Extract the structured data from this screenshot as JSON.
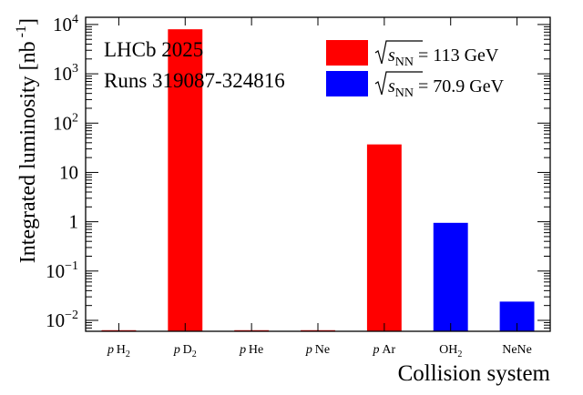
{
  "chart_data": {
    "type": "bar",
    "yscale": "log",
    "ylim": [
      0.006,
      14000
    ],
    "ylabel": {
      "main": "Integrated luminosity [nb",
      "sup": "-1",
      "close": "]"
    },
    "xlabel": "Collision system",
    "annotations": [
      "LHCb 2025",
      "Runs 319087-324816"
    ],
    "categories": [
      {
        "pre": "p",
        "base": "H",
        "sub": "2"
      },
      {
        "pre": "p",
        "base": "D",
        "sub": "2"
      },
      {
        "pre": "p",
        "base": "He",
        "sub": ""
      },
      {
        "pre": "p",
        "base": "Ne",
        "sub": ""
      },
      {
        "pre": "p",
        "base": "Ar",
        "sub": ""
      },
      {
        "pre": "",
        "base": "OH",
        "sub": "2"
      },
      {
        "pre": "",
        "base": "NeNe",
        "sub": ""
      }
    ],
    "y_ticks": [
      {
        "v": 0.01,
        "base": "10",
        "sup": "−2"
      },
      {
        "v": 0.1,
        "base": "10",
        "sup": "−1"
      },
      {
        "v": 1,
        "base": "1",
        "sup": ""
      },
      {
        "v": 10,
        "base": "10",
        "sup": ""
      },
      {
        "v": 100,
        "base": "10",
        "sup": "2"
      },
      {
        "v": 1000,
        "base": "10",
        "sup": "3"
      },
      {
        "v": 10000,
        "base": "10",
        "sup": "4"
      }
    ],
    "series": [
      {
        "name_prefix": "",
        "name_sub": "NN",
        "name_suffix": " = 113 GeV",
        "color": "#ff0000",
        "values": [
          0.006,
          8000,
          0.006,
          0.006,
          37,
          0.006,
          null
        ]
      },
      {
        "name_prefix": "",
        "name_sub": "NN",
        "name_suffix": " = 70.9 GeV",
        "color": "#0000ff",
        "values": [
          null,
          null,
          null,
          null,
          null,
          0.95,
          0.024
        ]
      }
    ],
    "legend_position": "top-right",
    "grid": false
  }
}
